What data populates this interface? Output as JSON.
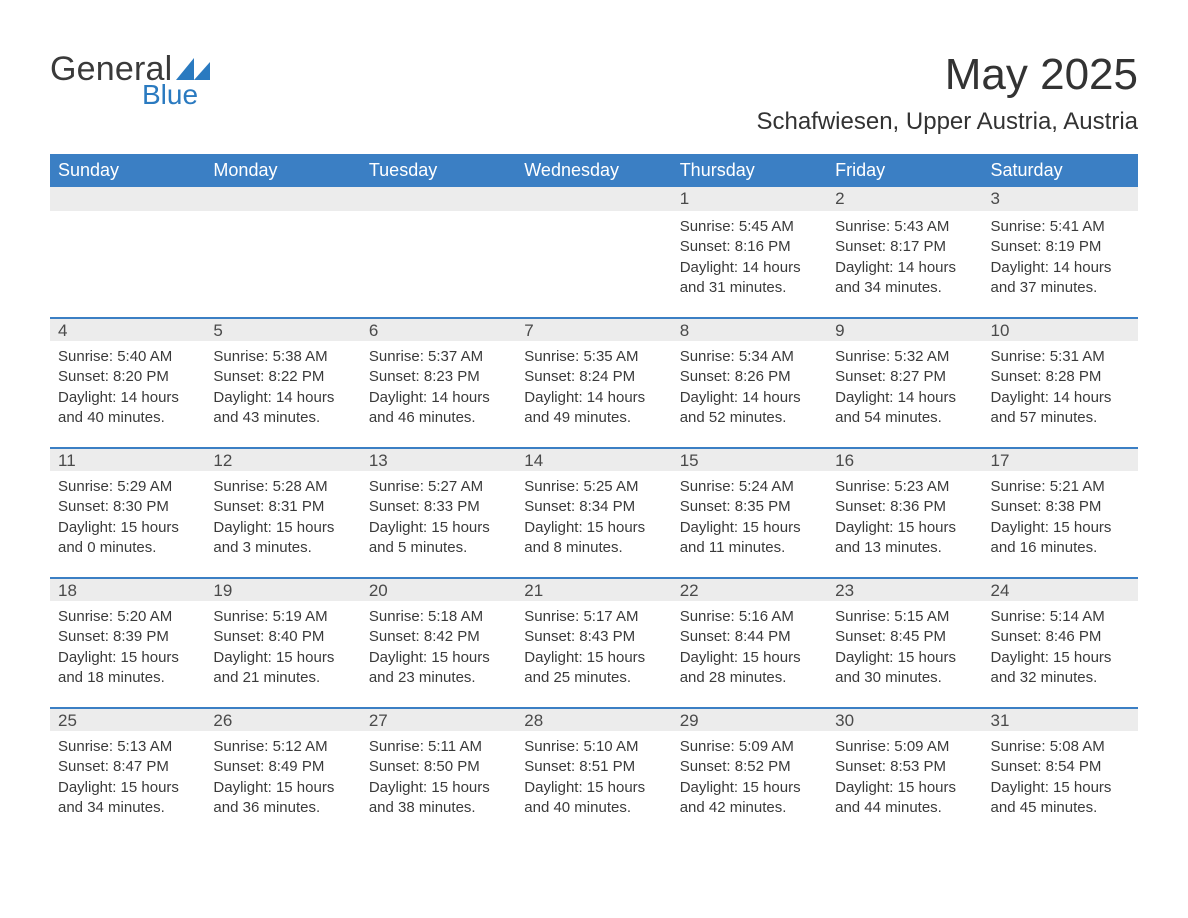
{
  "brand": {
    "word1": "General",
    "word2": "Blue",
    "triangle_color": "#2a7ac0",
    "text_color": "#3a3a3a"
  },
  "title": "May 2025",
  "location": "Schafwiesen, Upper Austria, Austria",
  "colors": {
    "header_bg": "#3b7fc4",
    "header_text": "#ffffff",
    "daynum_bg": "#ececec",
    "border_top": "#3b7fc4",
    "body_text": "#3a3a3a",
    "page_bg": "#ffffff"
  },
  "typography": {
    "title_fontsize": 44,
    "location_fontsize": 24,
    "header_fontsize": 18,
    "daynum_fontsize": 17,
    "body_fontsize": 15
  },
  "weekdays": [
    "Sunday",
    "Monday",
    "Tuesday",
    "Wednesday",
    "Thursday",
    "Friday",
    "Saturday"
  ],
  "labels": {
    "sunrise": "Sunrise:",
    "sunset": "Sunset:",
    "daylight": "Daylight:"
  },
  "weeks": [
    [
      null,
      null,
      null,
      null,
      {
        "n": "1",
        "sunrise": "5:45 AM",
        "sunset": "8:16 PM",
        "daylight": "14 hours and 31 minutes."
      },
      {
        "n": "2",
        "sunrise": "5:43 AM",
        "sunset": "8:17 PM",
        "daylight": "14 hours and 34 minutes."
      },
      {
        "n": "3",
        "sunrise": "5:41 AM",
        "sunset": "8:19 PM",
        "daylight": "14 hours and 37 minutes."
      }
    ],
    [
      {
        "n": "4",
        "sunrise": "5:40 AM",
        "sunset": "8:20 PM",
        "daylight": "14 hours and 40 minutes."
      },
      {
        "n": "5",
        "sunrise": "5:38 AM",
        "sunset": "8:22 PM",
        "daylight": "14 hours and 43 minutes."
      },
      {
        "n": "6",
        "sunrise": "5:37 AM",
        "sunset": "8:23 PM",
        "daylight": "14 hours and 46 minutes."
      },
      {
        "n": "7",
        "sunrise": "5:35 AM",
        "sunset": "8:24 PM",
        "daylight": "14 hours and 49 minutes."
      },
      {
        "n": "8",
        "sunrise": "5:34 AM",
        "sunset": "8:26 PM",
        "daylight": "14 hours and 52 minutes."
      },
      {
        "n": "9",
        "sunrise": "5:32 AM",
        "sunset": "8:27 PM",
        "daylight": "14 hours and 54 minutes."
      },
      {
        "n": "10",
        "sunrise": "5:31 AM",
        "sunset": "8:28 PM",
        "daylight": "14 hours and 57 minutes."
      }
    ],
    [
      {
        "n": "11",
        "sunrise": "5:29 AM",
        "sunset": "8:30 PM",
        "daylight": "15 hours and 0 minutes."
      },
      {
        "n": "12",
        "sunrise": "5:28 AM",
        "sunset": "8:31 PM",
        "daylight": "15 hours and 3 minutes."
      },
      {
        "n": "13",
        "sunrise": "5:27 AM",
        "sunset": "8:33 PM",
        "daylight": "15 hours and 5 minutes."
      },
      {
        "n": "14",
        "sunrise": "5:25 AM",
        "sunset": "8:34 PM",
        "daylight": "15 hours and 8 minutes."
      },
      {
        "n": "15",
        "sunrise": "5:24 AM",
        "sunset": "8:35 PM",
        "daylight": "15 hours and 11 minutes."
      },
      {
        "n": "16",
        "sunrise": "5:23 AM",
        "sunset": "8:36 PM",
        "daylight": "15 hours and 13 minutes."
      },
      {
        "n": "17",
        "sunrise": "5:21 AM",
        "sunset": "8:38 PM",
        "daylight": "15 hours and 16 minutes."
      }
    ],
    [
      {
        "n": "18",
        "sunrise": "5:20 AM",
        "sunset": "8:39 PM",
        "daylight": "15 hours and 18 minutes."
      },
      {
        "n": "19",
        "sunrise": "5:19 AM",
        "sunset": "8:40 PM",
        "daylight": "15 hours and 21 minutes."
      },
      {
        "n": "20",
        "sunrise": "5:18 AM",
        "sunset": "8:42 PM",
        "daylight": "15 hours and 23 minutes."
      },
      {
        "n": "21",
        "sunrise": "5:17 AM",
        "sunset": "8:43 PM",
        "daylight": "15 hours and 25 minutes."
      },
      {
        "n": "22",
        "sunrise": "5:16 AM",
        "sunset": "8:44 PM",
        "daylight": "15 hours and 28 minutes."
      },
      {
        "n": "23",
        "sunrise": "5:15 AM",
        "sunset": "8:45 PM",
        "daylight": "15 hours and 30 minutes."
      },
      {
        "n": "24",
        "sunrise": "5:14 AM",
        "sunset": "8:46 PM",
        "daylight": "15 hours and 32 minutes."
      }
    ],
    [
      {
        "n": "25",
        "sunrise": "5:13 AM",
        "sunset": "8:47 PM",
        "daylight": "15 hours and 34 minutes."
      },
      {
        "n": "26",
        "sunrise": "5:12 AM",
        "sunset": "8:49 PM",
        "daylight": "15 hours and 36 minutes."
      },
      {
        "n": "27",
        "sunrise": "5:11 AM",
        "sunset": "8:50 PM",
        "daylight": "15 hours and 38 minutes."
      },
      {
        "n": "28",
        "sunrise": "5:10 AM",
        "sunset": "8:51 PM",
        "daylight": "15 hours and 40 minutes."
      },
      {
        "n": "29",
        "sunrise": "5:09 AM",
        "sunset": "8:52 PM",
        "daylight": "15 hours and 42 minutes."
      },
      {
        "n": "30",
        "sunrise": "5:09 AM",
        "sunset": "8:53 PM",
        "daylight": "15 hours and 44 minutes."
      },
      {
        "n": "31",
        "sunrise": "5:08 AM",
        "sunset": "8:54 PM",
        "daylight": "15 hours and 45 minutes."
      }
    ]
  ]
}
